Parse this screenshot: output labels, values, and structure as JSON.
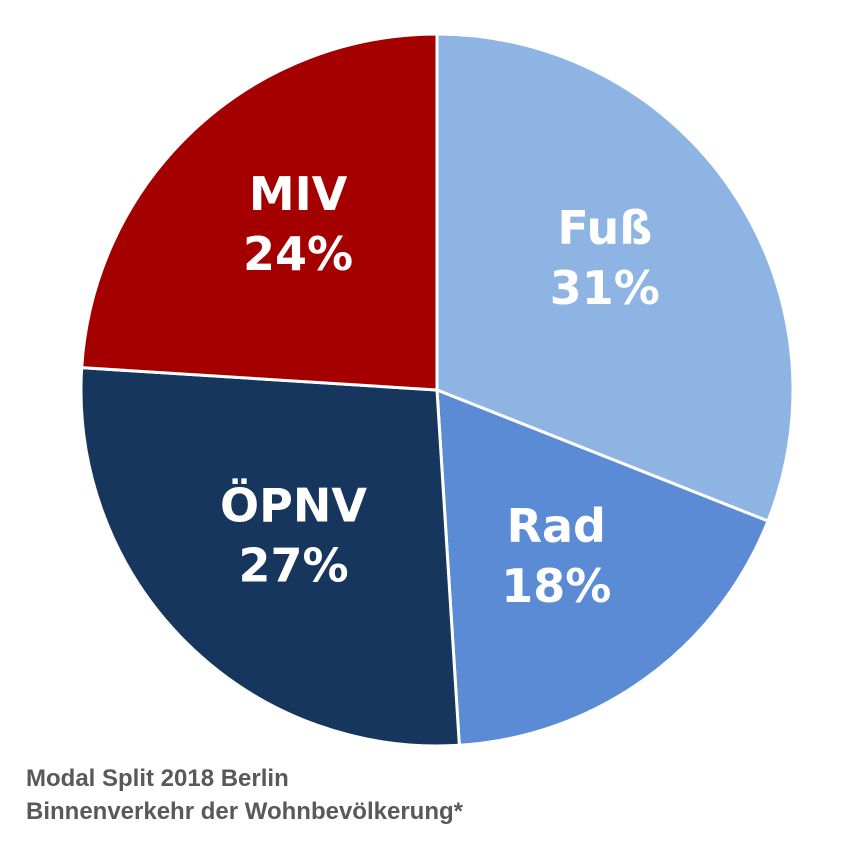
{
  "chart_data": {
    "type": "pie",
    "slices": [
      {
        "label": "Fuß",
        "value": 31,
        "value_label": "31%",
        "color": "#8db4e2"
      },
      {
        "label": "Rad",
        "value": 18,
        "value_label": "18%",
        "color": "#5b8bd4"
      },
      {
        "label": "ÖPNV",
        "value": 27,
        "value_label": "27%",
        "color": "#17365d"
      },
      {
        "label": "MIV",
        "value": 24,
        "value_label": "24%",
        "color": "#a50000"
      }
    ],
    "caption": {
      "line1": "Modal Split 2018 Berlin",
      "line2": "Binnenverkehr der Wohnbevölkerung*"
    }
  }
}
